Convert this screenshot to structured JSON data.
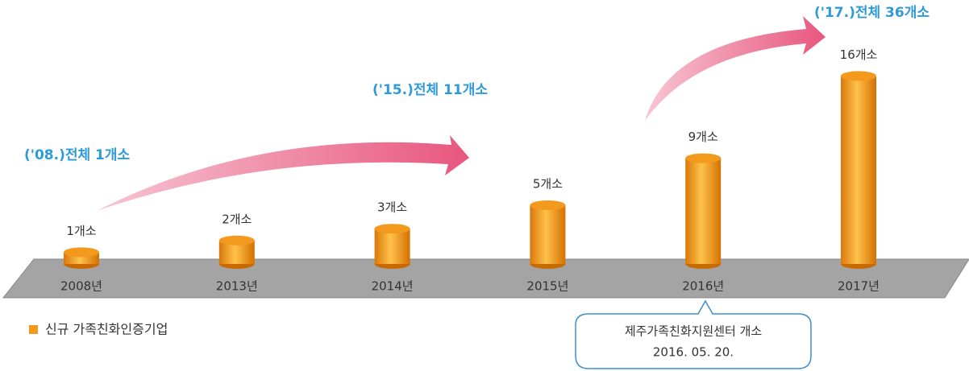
{
  "chart_data": {
    "type": "bar",
    "categories": [
      "2008년",
      "2013년",
      "2014년",
      "2015년",
      "2016년",
      "2017년"
    ],
    "series": [
      {
        "name": "신규 가족친화인증기업",
        "color": "#f39a1e",
        "values": [
          1,
          2,
          3,
          5,
          9,
          16
        ],
        "value_labels": [
          "1개소",
          "2개소",
          "3개소",
          "5개소",
          "9개소",
          "16개소"
        ]
      }
    ],
    "annotations": [
      "('08.)전체 1개소",
      "('15.)전체 11개소",
      "('17.)전체 36개소"
    ],
    "callout": [
      "제주가족친화지원센터 개소",
      "2016. 05. 20."
    ]
  }
}
